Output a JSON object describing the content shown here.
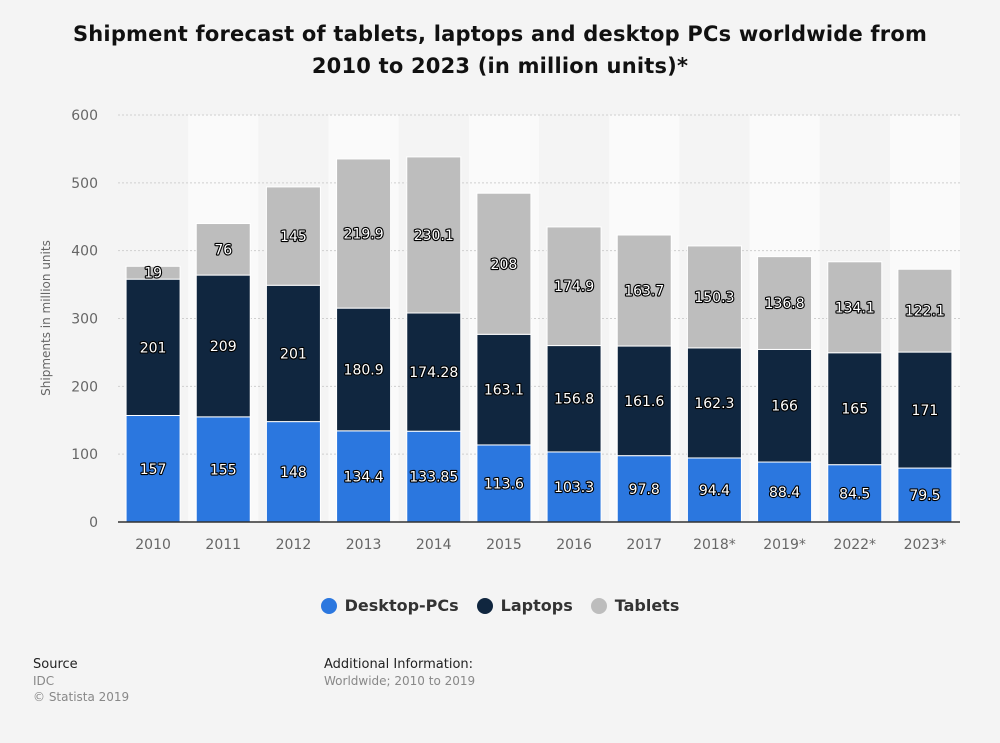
{
  "chart_data": {
    "type": "bar",
    "stacked": true,
    "title": "Shipment forecast of tablets, laptops and desktop PCs worldwide from 2010 to 2023 (in million units)*",
    "ylabel": "Shipments in million units",
    "xlabel": "",
    "ylim": [
      0,
      600
    ],
    "yticks": [
      0,
      100,
      200,
      300,
      400,
      500,
      600
    ],
    "grid": true,
    "legend_position": "bottom",
    "categories": [
      "2010",
      "2011",
      "2012",
      "2013",
      "2014",
      "2015",
      "2016",
      "2017",
      "2018*",
      "2019*",
      "2022*",
      "2023*"
    ],
    "series": [
      {
        "name": "Desktop-PCs",
        "color": "#2b77df",
        "values": [
          157,
          155,
          148,
          134.4,
          133.85,
          113.6,
          103.3,
          97.8,
          94.4,
          88.4,
          84.5,
          79.5
        ]
      },
      {
        "name": "Laptops",
        "color": "#10263f",
        "values": [
          201,
          209,
          201,
          180.9,
          174.28,
          163.1,
          156.8,
          161.6,
          162.3,
          166,
          165,
          171
        ]
      },
      {
        "name": "Tablets",
        "color": "#bdbdbd",
        "values": [
          19,
          76,
          145,
          219.9,
          230.1,
          208,
          174.9,
          163.7,
          150.3,
          136.8,
          134.1,
          122.1
        ]
      }
    ]
  },
  "footer": {
    "source_title": "Source",
    "source_name": "IDC",
    "copyright": "© Statista 2019",
    "additional_title": "Additional Information:",
    "additional_text": "Worldwide; 2010 to 2019"
  }
}
